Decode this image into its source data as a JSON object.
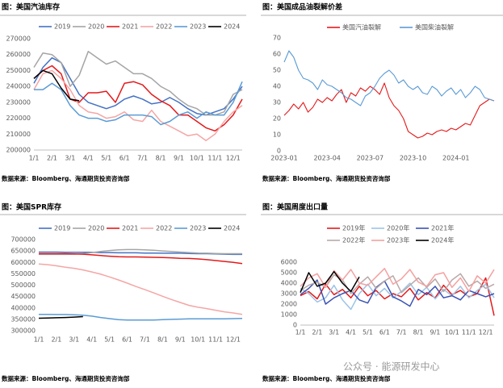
{
  "chart_data": [
    {
      "type": "line",
      "title": "图：美国汽油库存",
      "source": "数据来源：Bloomberg、海通期货投资咨询部",
      "categories": [
        "1/1",
        null,
        "2/1",
        null,
        "3/1",
        null,
        "4/1",
        null,
        "5/1",
        null,
        "6/1",
        null,
        "7/1",
        null,
        "8/1",
        null,
        "9/1",
        null,
        "10/1",
        null,
        "11/1",
        null,
        "12/1",
        null
      ],
      "ylim": [
        200000,
        270000
      ],
      "yticks": [
        200000,
        210000,
        220000,
        230000,
        240000,
        250000,
        260000,
        270000
      ],
      "series": [
        {
          "name": "2019",
          "color": "#4472c4",
          "values": [
            242000,
            252000,
            258000,
            255000,
            245000,
            235000,
            230000,
            228000,
            226000,
            228000,
            232000,
            234000,
            232000,
            229000,
            230000,
            233000,
            230000,
            226000,
            223000,
            222000,
            224000,
            226000,
            232000,
            240000
          ]
        },
        {
          "name": "2020",
          "color": "#a5a5a5",
          "values": [
            252000,
            261000,
            260000,
            255000,
            240000,
            247000,
            262000,
            258000,
            254000,
            256000,
            252000,
            248000,
            248000,
            245000,
            240000,
            237000,
            232000,
            228000,
            226000,
            222000,
            222000,
            224000,
            235000,
            238000
          ]
        },
        {
          "name": "2021",
          "color": "#e31a1c",
          "values": [
            245000,
            250000,
            253000,
            248000,
            232000,
            230000,
            236000,
            236000,
            237000,
            230000,
            242000,
            243000,
            241000,
            235000,
            231000,
            228000,
            222000,
            222000,
            218000,
            214000,
            212000,
            216000,
            222000,
            232000
          ]
        },
        {
          "name": "2022",
          "color": "#f4a6a6",
          "values": [
            238000,
            248000,
            250000,
            245000,
            238000,
            228000,
            224000,
            223000,
            220000,
            221000,
            224000,
            219000,
            218000,
            225000,
            218000,
            215000,
            212000,
            209000,
            210000,
            206000,
            210000,
            218000,
            224000,
            228000
          ]
        },
        {
          "name": "2023",
          "color": "#5b9bd5",
          "values": [
            238000,
            238000,
            242000,
            238000,
            228000,
            222000,
            220000,
            220000,
            218000,
            219000,
            222000,
            222000,
            222000,
            221000,
            216000,
            218000,
            222000,
            224000,
            220000,
            224000,
            222000,
            222000,
            230000,
            243000
          ]
        },
        {
          "name": "2024",
          "color": "#000000",
          "values": [
            245000,
            250000,
            248000,
            239000,
            232000,
            231000,
            null,
            null,
            null,
            null,
            null,
            null,
            null,
            null,
            null,
            null,
            null,
            null,
            null,
            null,
            null,
            null,
            null,
            null
          ]
        }
      ]
    },
    {
      "type": "line",
      "title": "图：美国成品油裂解价差",
      "source": "数据来源：Bloomberg、海通期货投资咨询部",
      "categories": [
        "2023-01",
        null,
        null,
        null,
        null,
        null,
        null,
        null,
        null,
        "2023-04",
        null,
        null,
        null,
        null,
        null,
        null,
        null,
        null,
        "2023-07",
        null,
        null,
        null,
        null,
        null,
        null,
        null,
        null,
        "2023-10",
        null,
        null,
        null,
        null,
        null,
        null,
        null,
        null,
        "2024-01",
        null,
        null,
        null,
        null,
        null,
        null,
        null,
        null
      ],
      "ylim": [
        0,
        70
      ],
      "yticks": [
        0,
        10,
        20,
        30,
        40,
        50,
        60,
        70
      ],
      "series": [
        {
          "name": "美国汽油裂解",
          "color": "#e31a1c",
          "values": [
            22,
            25,
            29,
            26,
            30,
            24,
            27,
            32,
            30,
            33,
            31,
            35,
            38,
            30,
            36,
            34,
            39,
            37,
            40,
            38,
            35,
            42,
            33,
            28,
            25,
            20,
            12,
            10,
            8,
            9,
            11,
            10,
            12,
            13,
            12,
            14,
            13,
            15,
            17,
            16,
            22,
            28,
            30,
            32,
            31
          ]
        },
        {
          "name": "美国柴油裂解",
          "color": "#5b9bd5",
          "values": [
            55,
            62,
            58,
            50,
            45,
            44,
            42,
            38,
            44,
            41,
            40,
            38,
            36,
            33,
            32,
            30,
            28,
            34,
            36,
            40,
            45,
            48,
            50,
            47,
            42,
            44,
            40,
            38,
            40,
            36,
            35,
            40,
            38,
            34,
            37,
            39,
            35,
            38,
            33,
            36,
            40,
            38,
            33,
            32,
            31
          ]
        }
      ]
    },
    {
      "type": "line",
      "title": "图：美国SPR库存",
      "source": "数据来源：Bloomberg、海通期货投资咨询部",
      "categories": [
        "1/1",
        null,
        "2/1",
        null,
        "3/1",
        null,
        "4/1",
        null,
        "5/1",
        null,
        "6/1",
        null,
        "7/1",
        null,
        "8/1",
        null,
        "9/1",
        null,
        "10/1",
        null,
        "11/1",
        null,
        "12/1",
        null
      ],
      "ylim": [
        300000,
        700000
      ],
      "yticks": [
        300000,
        350000,
        400000,
        450000,
        500000,
        550000,
        600000,
        650000,
        700000
      ],
      "series": [
        {
          "name": "2019",
          "color": "#4472c4",
          "values": [
            645000,
            645000,
            645000,
            644000,
            644000,
            644000,
            644000,
            643000,
            643000,
            642000,
            642000,
            642000,
            641000,
            641000,
            640000,
            640000,
            640000,
            639000,
            638000,
            638000,
            637000,
            636000,
            635000,
            635000
          ]
        },
        {
          "name": "2020",
          "color": "#a5a5a5",
          "values": [
            635000,
            635000,
            635000,
            635000,
            636000,
            638000,
            643000,
            648000,
            652000,
            655000,
            656000,
            656000,
            655000,
            653000,
            650000,
            648000,
            645000,
            643000,
            641000,
            640000,
            639000,
            638000,
            638000,
            638000
          ]
        },
        {
          "name": "2021",
          "color": "#e31a1c",
          "values": [
            638000,
            638000,
            638000,
            638000,
            637000,
            636000,
            633000,
            630000,
            627000,
            625000,
            624000,
            624000,
            623000,
            622000,
            621000,
            620000,
            618000,
            617000,
            615000,
            612000,
            608000,
            604000,
            600000,
            595000
          ]
        },
        {
          "name": "2022",
          "color": "#f4a6a6",
          "values": [
            593000,
            590000,
            585000,
            579000,
            574000,
            567000,
            558000,
            548000,
            536000,
            523000,
            509000,
            494000,
            480000,
            466000,
            451000,
            437000,
            424000,
            411000,
            403000,
            397000,
            390000,
            383000,
            378000,
            372000
          ]
        },
        {
          "name": "2023",
          "color": "#5b9bd5",
          "values": [
            372000,
            372000,
            371000,
            371000,
            370000,
            368000,
            364000,
            358000,
            353000,
            349000,
            347000,
            347000,
            347000,
            347000,
            349000,
            350000,
            351000,
            352000,
            352000,
            352000,
            352000,
            352000,
            353000,
            354000
          ]
        },
        {
          "name": "2024",
          "color": "#000000",
          "values": [
            355000,
            356000,
            357000,
            358000,
            360000,
            362000,
            null,
            null,
            null,
            null,
            null,
            null,
            null,
            null,
            null,
            null,
            null,
            null,
            null,
            null,
            null,
            null,
            null,
            null
          ]
        }
      ]
    },
    {
      "type": "line",
      "title": "图：美国周度出口量",
      "source": "数据来源：Bloomberg、海通期货投资咨询部",
      "categories": [
        "1/1",
        null,
        "2/1",
        null,
        "3/1",
        null,
        "4/1",
        null,
        "5/1",
        null,
        "6/1",
        null,
        "7/1",
        null,
        "8/1",
        null,
        "9/1",
        null,
        "10/1",
        null,
        "11/1",
        null,
        "12/1",
        null
      ],
      "ylim": [
        0,
        6000
      ],
      "yticks": [
        0,
        1000,
        2000,
        3000,
        4000,
        5000,
        6000
      ],
      "series": [
        {
          "name": "2019年",
          "color": "#e31a1c",
          "values": [
            2800,
            3200,
            2500,
            3900,
            2900,
            3400,
            2600,
            3700,
            2800,
            3300,
            2500,
            3000,
            2700,
            3500,
            2400,
            3100,
            2600,
            3800,
            2900,
            3300,
            2700,
            3000,
            4500,
            900
          ]
        },
        {
          "name": "2020年",
          "color": "#9dc3e6",
          "values": [
            3500,
            3000,
            2200,
            2600,
            3800,
            2400,
            1500,
            3000,
            3900,
            2800,
            3500,
            2600,
            3200,
            4000,
            2900,
            3600,
            2500,
            3400,
            2800,
            3700,
            2600,
            3300,
            3900,
            2600
          ]
        },
        {
          "name": "2021年",
          "color": "#3a52b4",
          "values": [
            2900,
            3500,
            4300,
            2000,
            2600,
            3000,
            3300,
            2400,
            2100,
            3600,
            4200,
            2700,
            2300,
            1800,
            3400,
            2900,
            3700,
            2600,
            2800,
            2400,
            3300,
            3000,
            2700,
            3000
          ]
        },
        {
          "name": "2022年",
          "color": "#b8a8a8",
          "values": [
            3300,
            3800,
            4100,
            3600,
            4800,
            4300,
            3000,
            3900,
            4600,
            3500,
            4200,
            4700,
            3100,
            3800,
            4500,
            3600,
            4400,
            3200,
            4300,
            4900,
            3700,
            4200,
            3500,
            3900
          ]
        },
        {
          "name": "2023年",
          "color": "#f4a0a0",
          "values": [
            3700,
            4500,
            4900,
            3600,
            5200,
            4300,
            5300,
            4000,
            3800,
            4600,
            5400,
            3900,
            4400,
            5300,
            4100,
            3700,
            4800,
            5000,
            3600,
            4500,
            3200,
            4700,
            4000,
            5300
          ]
        },
        {
          "name": "2024年",
          "color": "#000000",
          "values": [
            3100,
            5000,
            3700,
            4000,
            5100,
            4000,
            3200,
            4600,
            null,
            null,
            null,
            null,
            null,
            null,
            null,
            null,
            null,
            null,
            null,
            null,
            null,
            null,
            null,
            null
          ]
        }
      ]
    }
  ],
  "watermark": "公众号 · 能源研发中心"
}
